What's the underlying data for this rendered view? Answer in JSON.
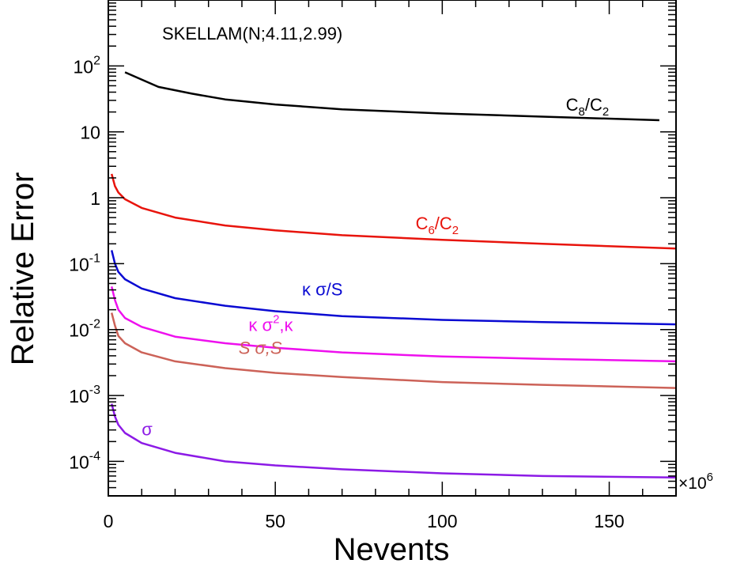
{
  "chart_data": {
    "type": "line",
    "title": "SKELLAM(N;4.11,2.99)",
    "xlabel": "Nevents",
    "ylabel": "Relative Error",
    "x_multiplier": "×10",
    "x_multiplier_exp": "6",
    "xlim": [
      0,
      170
    ],
    "ylim": [
      3e-05,
      1000
    ],
    "yscale": "log",
    "x_ticks": [
      "0",
      "50",
      "100",
      "150"
    ],
    "x_tick_values": [
      0,
      50,
      100,
      150
    ],
    "y_ticks": [
      {
        "value": 0.0001,
        "base": "10",
        "exp": "-4"
      },
      {
        "value": 0.001,
        "base": "10",
        "exp": "-3"
      },
      {
        "value": 0.01,
        "base": "10",
        "exp": "-2"
      },
      {
        "value": 0.1,
        "base": "10",
        "exp": "-1"
      },
      {
        "value": 1,
        "base": "1",
        "exp": ""
      },
      {
        "value": 10,
        "base": "10",
        "exp": ""
      },
      {
        "value": 100,
        "base": "10",
        "exp": "2"
      }
    ],
    "series": [
      {
        "name": "C8/C2",
        "label_main": "C",
        "label_sub1": "8",
        "label_mid": "/C",
        "label_sub2": "2",
        "color": "#000000",
        "label_x": 137,
        "label_y": 21,
        "x": [
          5,
          10,
          15,
          25,
          35,
          50,
          70,
          100,
          130,
          165
        ],
        "y": [
          80,
          62,
          48,
          38,
          31,
          26,
          22,
          19,
          17,
          15
        ]
      },
      {
        "name": "C6/C2",
        "label_main": "C",
        "label_sub1": "6",
        "label_mid": "/C",
        "label_sub2": "2",
        "color": "#e8140c",
        "label_x": 92,
        "label_y": 0.33,
        "x": [
          1,
          2,
          3,
          5,
          10,
          20,
          35,
          50,
          70,
          100,
          130,
          170
        ],
        "y": [
          2.3,
          1.5,
          1.2,
          0.95,
          0.7,
          0.5,
          0.38,
          0.32,
          0.27,
          0.23,
          0.2,
          0.17
        ]
      },
      {
        "name": "κ σ/S",
        "label_main": "κ σ/S",
        "color": "#0a0ad2",
        "label_x": 58,
        "label_y": 0.033,
        "x": [
          1,
          2,
          3,
          5,
          10,
          20,
          35,
          50,
          70,
          100,
          130,
          170
        ],
        "y": [
          0.16,
          0.1,
          0.075,
          0.058,
          0.042,
          0.03,
          0.023,
          0.019,
          0.016,
          0.014,
          0.013,
          0.012
        ]
      },
      {
        "name": "κ σ2,κ",
        "label_main": "κ σ",
        "label_sup": "2",
        "label_tail": ",κ",
        "color": "#ee10ee",
        "label_x": 42,
        "label_y": 0.0095,
        "x": [
          1,
          2,
          3,
          5,
          10,
          20,
          35,
          50,
          70,
          100,
          130,
          170
        ],
        "y": [
          0.045,
          0.028,
          0.02,
          0.015,
          0.011,
          0.0078,
          0.0062,
          0.0053,
          0.0045,
          0.0039,
          0.0036,
          0.0033
        ]
      },
      {
        "name": "S σ,S",
        "label_main": "S σ,S",
        "color": "#cc6258",
        "label_x": 39,
        "label_y": 0.0043,
        "x": [
          1,
          2,
          3,
          5,
          10,
          20,
          35,
          50,
          70,
          100,
          130,
          170
        ],
        "y": [
          0.018,
          0.0115,
          0.008,
          0.0062,
          0.0045,
          0.0033,
          0.0026,
          0.0022,
          0.0019,
          0.0016,
          0.00145,
          0.0013
        ]
      },
      {
        "name": "σ",
        "label_main": "σ",
        "color": "#8c1ae6",
        "label_x": 10,
        "label_y": 0.00025,
        "x": [
          1,
          2,
          3,
          5,
          10,
          20,
          35,
          50,
          70,
          100,
          130,
          170
        ],
        "y": [
          0.00075,
          0.00048,
          0.00036,
          0.00027,
          0.00019,
          0.000135,
          0.0001,
          8.7e-05,
          7.6e-05,
          6.6e-05,
          6e-05,
          5.7e-05
        ]
      }
    ],
    "grid": false,
    "legend": "inline labels"
  }
}
